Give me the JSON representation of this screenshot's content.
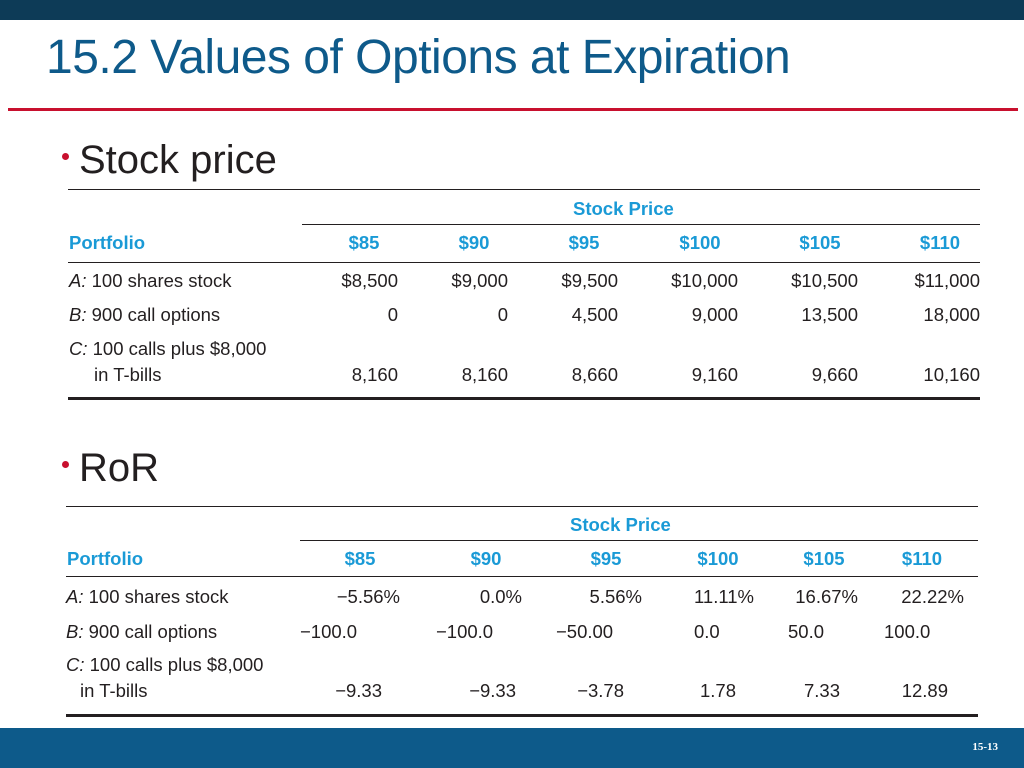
{
  "slide": {
    "title": "15.2 Values of Options at Expiration",
    "page_number": "15-13"
  },
  "bullets": [
    {
      "label": "Stock price"
    },
    {
      "label": "RoR"
    }
  ],
  "tables": [
    {
      "group_header": "Stock Price",
      "row_header": "Portfolio",
      "columns": [
        "$85",
        "$90",
        "$95",
        "$100",
        "$105",
        "$110"
      ],
      "rows": [
        {
          "prefix": "A:",
          "label": "100 shares stock",
          "label2": "",
          "values": [
            "$8,500",
            "$9,000",
            "$9,500",
            "$10,000",
            "$10,500",
            "$11,000"
          ]
        },
        {
          "prefix": "B:",
          "label": "900 call options",
          "label2": "",
          "values": [
            "0",
            "0",
            "4,500",
            "9,000",
            "13,500",
            "18,000"
          ]
        },
        {
          "prefix": "C:",
          "label": "100 calls plus $8,000",
          "label2": "in T-bills",
          "values": [
            "8,160",
            "8,160",
            "8,660",
            "9,160",
            "9,660",
            "10,160"
          ]
        }
      ]
    },
    {
      "group_header": "Stock Price",
      "row_header": "Portfolio",
      "columns": [
        "$85",
        "$90",
        "$95",
        "$100",
        "$105",
        "$110"
      ],
      "rows": [
        {
          "prefix": "A:",
          "label": "100 shares stock",
          "label2": "",
          "values": [
            "−5.56%",
            "0.0%",
            "5.56%",
            "11.11%",
            "16.67%",
            "22.22%"
          ]
        },
        {
          "prefix": "B:",
          "label": "900 call options",
          "label2": "",
          "values": [
            "−100.0",
            "−100.0",
            "−50.00",
            "0.0",
            "50.0",
            "100.0"
          ]
        },
        {
          "prefix": "C:",
          "label": "100 calls plus $8,000",
          "label2": "in T-bills",
          "values": [
            "−9.33",
            "−9.33",
            "−3.78",
            "1.78",
            "7.33",
            "12.89"
          ]
        }
      ]
    }
  ]
}
